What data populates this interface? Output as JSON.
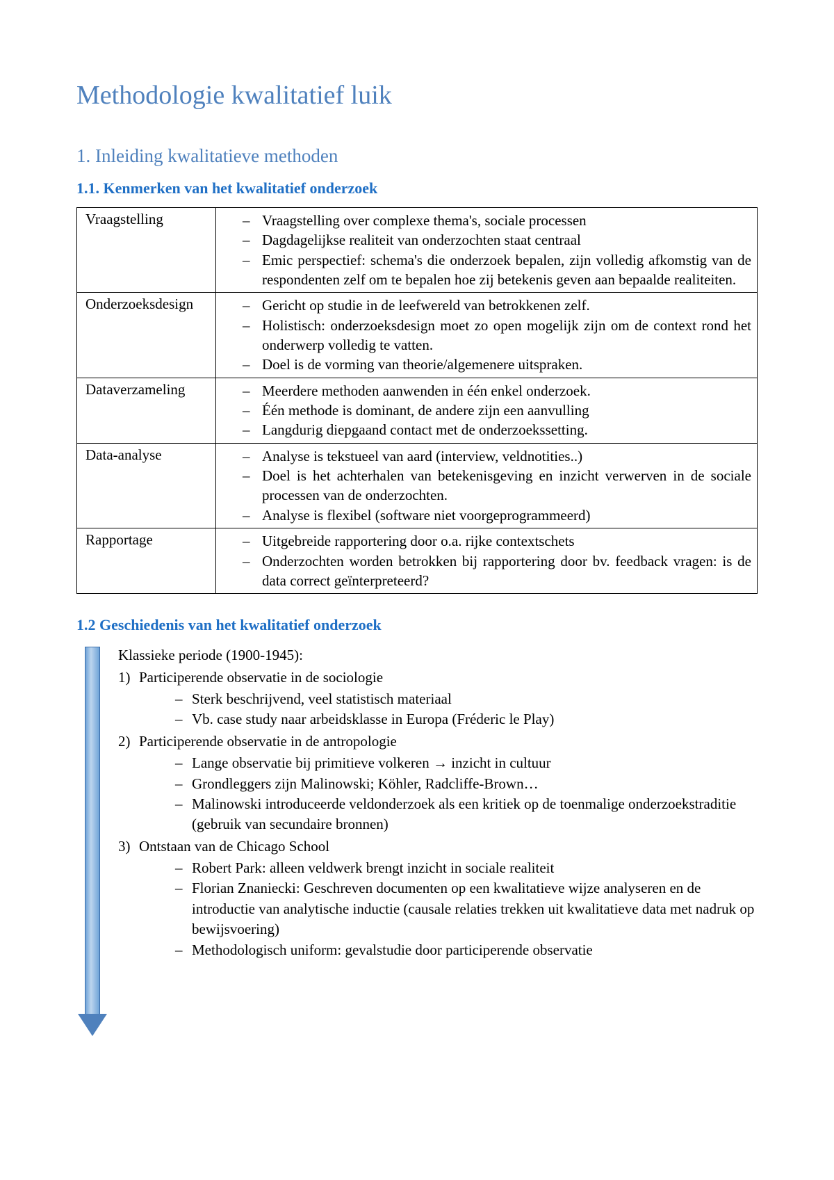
{
  "colors": {
    "title_blue": "#4f81bd",
    "heading_blue": "#1f6fc5",
    "text": "#000000",
    "background": "#ffffff",
    "arrow_fill": "#4f81bd",
    "arrow_border": "#3a6daa"
  },
  "typography": {
    "family": "Times New Roman",
    "title_size_pt": 28,
    "h1_size_pt": 20,
    "h2_size_pt": 16,
    "body_size_pt": 16
  },
  "title": "Methodologie kwalitatief luik",
  "section1": {
    "heading": "1. Inleiding kwalitatieve methoden",
    "sub1": {
      "heading": "1.1. Kenmerken van het kwalitatief onderzoek",
      "table": {
        "rows": [
          {
            "label": "Vraagstelling",
            "items": [
              "Vraagstelling over complexe thema's, sociale processen",
              "Dagdagelijkse realiteit van onderzochten staat centraal",
              "Emic perspectief: schema's die onderzoek bepalen, zijn volledig afkomstig van de respondenten zelf om te bepalen hoe zij betekenis geven aan bepaalde realiteiten."
            ]
          },
          {
            "label": "Onderzoeksdesign",
            "items": [
              "Gericht op studie in de leefwereld van betrokkenen zelf.",
              "Holistisch: onderzoeksdesign moet zo open mogelijk zijn om de context rond het onderwerp volledig te vatten.",
              "Doel is de vorming van theorie/algemenere uitspraken."
            ]
          },
          {
            "label": "Dataverzameling",
            "items": [
              "Meerdere methoden aanwenden in één enkel onderzoek.",
              "Één methode is dominant, de andere zijn een aanvulling",
              "Langdurig diepgaand contact met de onderzoekssetting."
            ]
          },
          {
            "label": "Data-analyse",
            "items": [
              "Analyse is tekstueel van aard (interview, veldnotities..)",
              "Doel is het achterhalen van betekenisgeving en inzicht verwerven in de sociale processen van de onderzochten.",
              "Analyse is flexibel (software niet voorgeprogrammeerd)"
            ]
          },
          {
            "label": "Rapportage",
            "items": [
              "Uitgebreide rapportering door o.a. rijke contextschets",
              "Onderzochten worden betrokken bij rapportering door bv. feedback vragen: is de data correct geïnterpreteerd?"
            ]
          }
        ]
      }
    },
    "sub2": {
      "heading": "1.2 Geschiedenis van het kwalitatief onderzoek",
      "period_label": "Klassieke periode (1900-1945):",
      "items": [
        {
          "num": "1)",
          "title": "Participerende observatie in de sociologie",
          "sub": [
            "Sterk beschrijvend, veel statistisch materiaal",
            "Vb. case study naar arbeidsklasse in Europa (Fréderic le Play)"
          ]
        },
        {
          "num": "2)",
          "title": "Participerende observatie in de antropologie",
          "sub": [
            "Lange observatie bij primitieve volkeren → inzicht in cultuur",
            "Grondleggers zijn Malinowski; Köhler, Radcliffe-Brown…",
            "Malinowski introduceerde veldonderzoek als een kritiek op de toenmalige onderzoekstraditie (gebruik van secundaire bronnen)"
          ]
        },
        {
          "num": "3)",
          "title": "Ontstaan van de Chicago School",
          "sub": [
            "Robert Park: alleen veldwerk brengt inzicht in sociale realiteit",
            "Florian Znaniecki: Geschreven documenten op een kwalitatieve wijze analyseren en de introductie van analytische inductie (causale relaties trekken uit kwalitatieve data met nadruk op bewijsvoering)",
            "Methodologisch uniform: gevalstudie door participerende observatie"
          ]
        }
      ]
    }
  }
}
